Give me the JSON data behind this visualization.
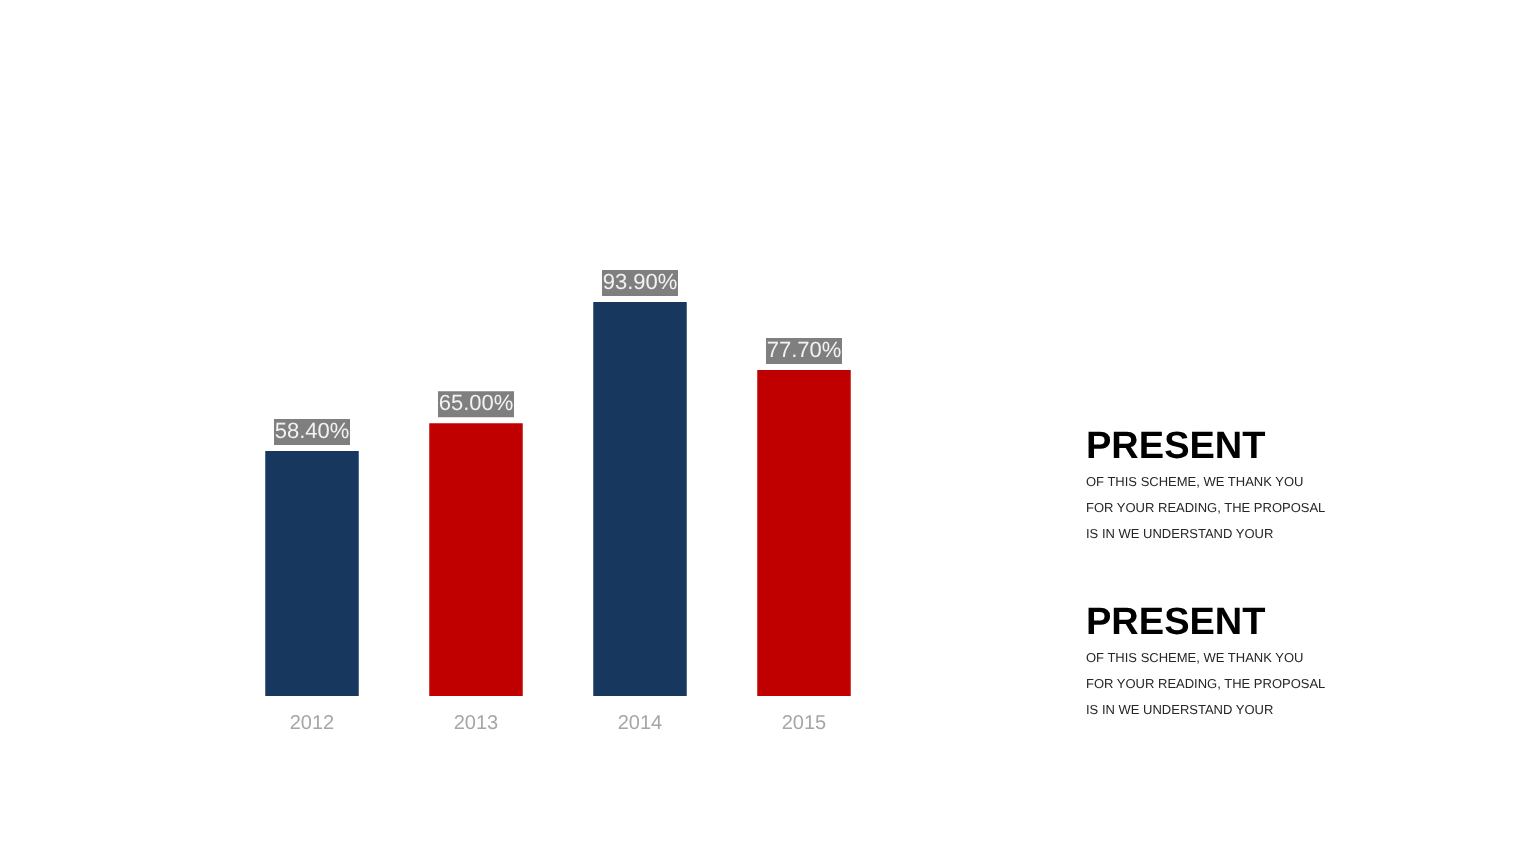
{
  "chart_data": [
    {
      "type": "bar",
      "categories": [
        "2012",
        "2013",
        "2014",
        "2015"
      ],
      "values": [
        58.4,
        65.0,
        93.9,
        77.7
      ],
      "colors": [
        "#17375e",
        "#c00000",
        "#17375e",
        "#c00000"
      ],
      "value_labels": [
        "58.40%",
        "65.00%",
        "93.90%",
        "77.70%"
      ],
      "tick_labels": "x"
    },
    {
      "type": "other",
      "title": "PRESENT",
      "annotations": [
        "OF THIS SCHEME, WE THANK YOU FOR YOUR READING, THE PROPOSAL IS IN WE UNDERSTAND YOUR"
      ]
    },
    {
      "type": "other",
      "title": "PRESENT",
      "annotations": [
        "OF THIS SCHEME, WE THANK YOU FOR YOUR READING, THE PROPOSAL IS IN WE UNDERSTAND YOUR"
      ]
    }
  ]
}
